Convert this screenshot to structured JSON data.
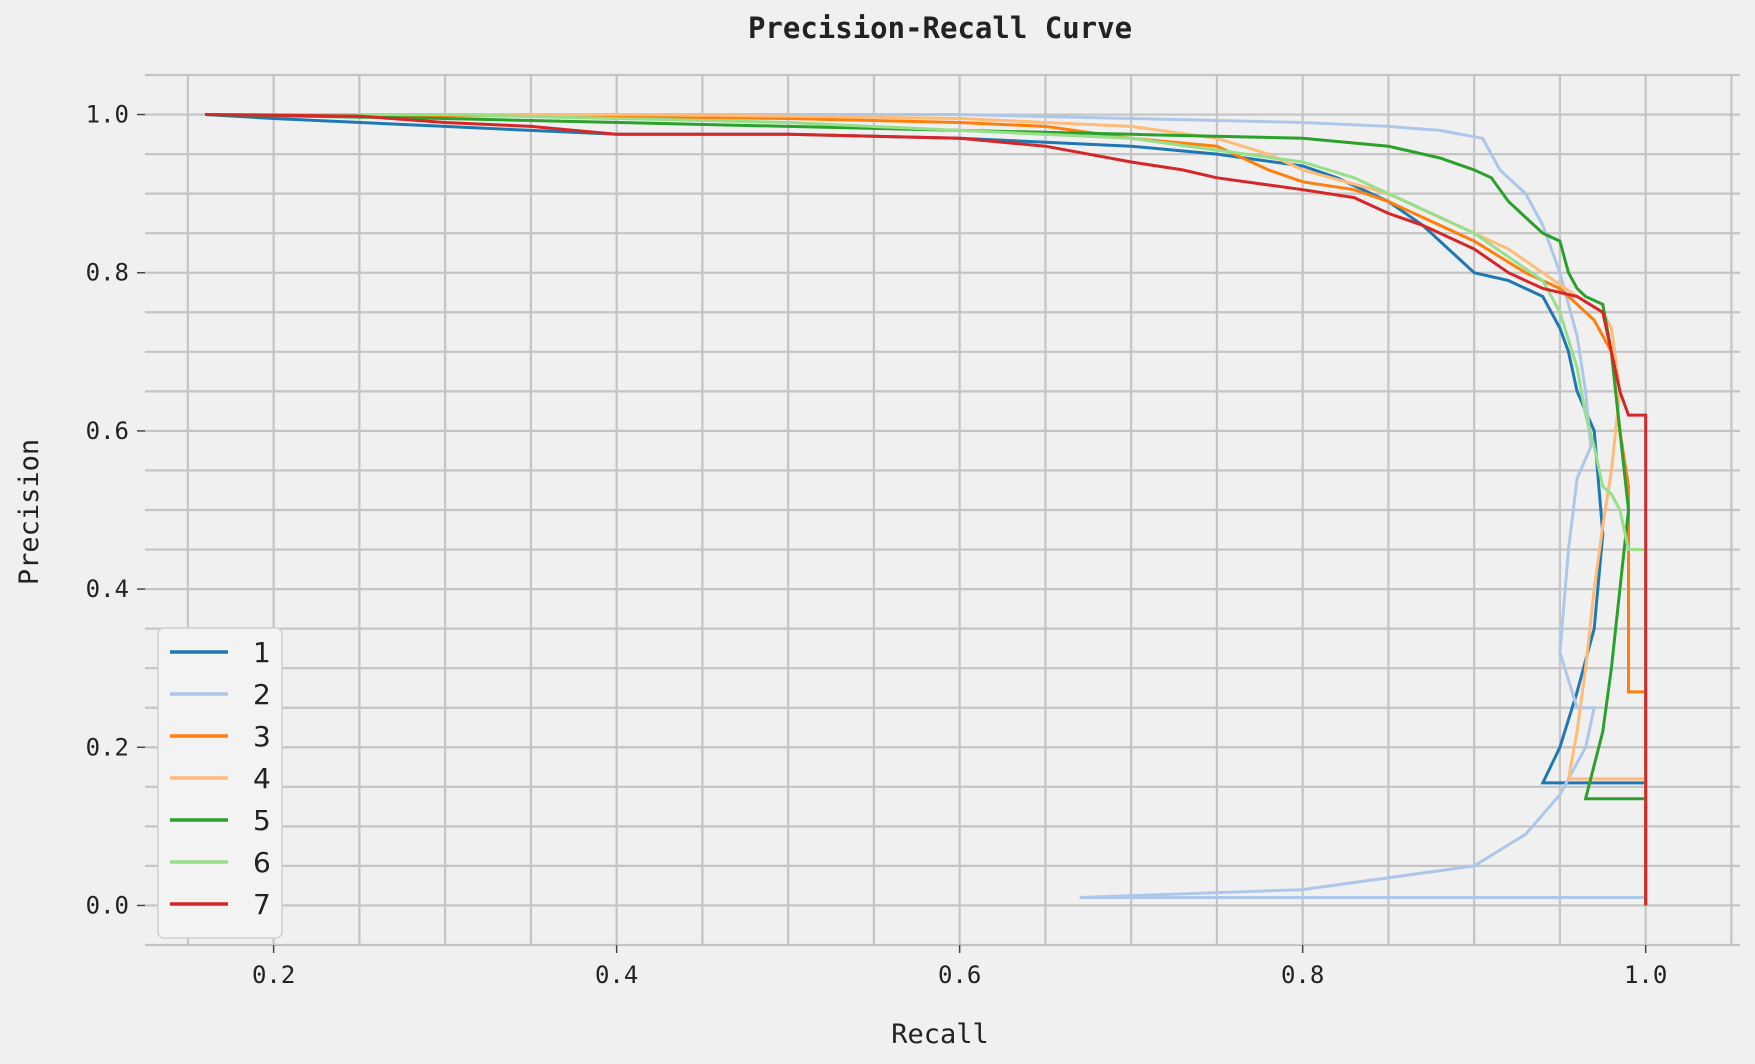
{
  "chart_data": {
    "type": "line",
    "title": "Precision-Recall Curve",
    "xlabel": "Recall",
    "ylabel": "Precision",
    "xlim": [
      0.125,
      1.055
    ],
    "ylim": [
      -0.05,
      1.05
    ],
    "xticks": [
      0.2,
      0.4,
      0.6,
      0.8,
      1.0
    ],
    "xtick_labels": [
      "0.2",
      "0.4",
      "0.6",
      "0.8",
      "1.0"
    ],
    "yticks": [
      0.0,
      0.2,
      0.4,
      0.6,
      0.8,
      1.0
    ],
    "ytick_labels": [
      "0.0",
      "0.2",
      "0.4",
      "0.6",
      "0.8",
      "1.0"
    ],
    "x_minor_grid_step": 0.05,
    "y_minor_grid_step": 0.05,
    "grid": true,
    "legend_position": "lower-left",
    "background": "#f0f0f0",
    "series": [
      {
        "name": "1",
        "color": "#1f77b4",
        "points": [
          [
            0.16,
            1.0
          ],
          [
            0.2,
            0.995
          ],
          [
            0.3,
            0.985
          ],
          [
            0.35,
            0.98
          ],
          [
            0.4,
            0.975
          ],
          [
            0.5,
            0.975
          ],
          [
            0.6,
            0.97
          ],
          [
            0.65,
            0.965
          ],
          [
            0.7,
            0.96
          ],
          [
            0.75,
            0.95
          ],
          [
            0.8,
            0.935
          ],
          [
            0.82,
            0.92
          ],
          [
            0.85,
            0.89
          ],
          [
            0.87,
            0.86
          ],
          [
            0.89,
            0.82
          ],
          [
            0.9,
            0.8
          ],
          [
            0.92,
            0.79
          ],
          [
            0.93,
            0.78
          ],
          [
            0.94,
            0.77
          ],
          [
            0.95,
            0.73
          ],
          [
            0.955,
            0.7
          ],
          [
            0.96,
            0.65
          ],
          [
            0.97,
            0.6
          ],
          [
            0.975,
            0.47
          ],
          [
            0.97,
            0.35
          ],
          [
            0.96,
            0.27
          ],
          [
            0.95,
            0.2
          ],
          [
            0.94,
            0.155
          ],
          [
            1.0,
            0.155
          ],
          [
            1.0,
            0.0
          ]
        ]
      },
      {
        "name": "2",
        "color": "#aec7e8",
        "points": [
          [
            0.16,
            1.0
          ],
          [
            0.3,
            1.0
          ],
          [
            0.4,
            1.0
          ],
          [
            0.5,
            1.0
          ],
          [
            0.6,
            1.0
          ],
          [
            0.7,
            0.995
          ],
          [
            0.8,
            0.99
          ],
          [
            0.85,
            0.985
          ],
          [
            0.88,
            0.98
          ],
          [
            0.905,
            0.97
          ],
          [
            0.91,
            0.95
          ],
          [
            0.915,
            0.93
          ],
          [
            0.93,
            0.9
          ],
          [
            0.94,
            0.86
          ],
          [
            0.95,
            0.8
          ],
          [
            0.96,
            0.72
          ],
          [
            0.965,
            0.65
          ],
          [
            0.968,
            0.58
          ],
          [
            0.96,
            0.54
          ],
          [
            0.955,
            0.45
          ],
          [
            0.95,
            0.32
          ],
          [
            0.96,
            0.25
          ],
          [
            0.97,
            0.25
          ],
          [
            0.965,
            0.2
          ],
          [
            0.95,
            0.14
          ],
          [
            0.93,
            0.09
          ],
          [
            0.9,
            0.05
          ],
          [
            0.8,
            0.02
          ],
          [
            0.67,
            0.01
          ],
          [
            1.0,
            0.01
          ]
        ]
      },
      {
        "name": "3",
        "color": "#ff7f0e",
        "points": [
          [
            0.16,
            1.0
          ],
          [
            0.37,
            0.998
          ],
          [
            0.5,
            0.995
          ],
          [
            0.6,
            0.99
          ],
          [
            0.65,
            0.985
          ],
          [
            0.7,
            0.97
          ],
          [
            0.75,
            0.96
          ],
          [
            0.78,
            0.93
          ],
          [
            0.8,
            0.915
          ],
          [
            0.83,
            0.905
          ],
          [
            0.85,
            0.89
          ],
          [
            0.87,
            0.87
          ],
          [
            0.9,
            0.84
          ],
          [
            0.93,
            0.8
          ],
          [
            0.95,
            0.78
          ],
          [
            0.96,
            0.76
          ],
          [
            0.97,
            0.74
          ],
          [
            0.98,
            0.7
          ],
          [
            0.985,
            0.6
          ],
          [
            0.99,
            0.53
          ],
          [
            0.99,
            0.27
          ],
          [
            1.0,
            0.27
          ],
          [
            1.0,
            0.0
          ]
        ]
      },
      {
        "name": "4",
        "color": "#ffbb78",
        "points": [
          [
            0.16,
            1.0
          ],
          [
            0.4,
            1.0
          ],
          [
            0.5,
            0.998
          ],
          [
            0.6,
            0.995
          ],
          [
            0.65,
            0.99
          ],
          [
            0.7,
            0.985
          ],
          [
            0.75,
            0.97
          ],
          [
            0.78,
            0.95
          ],
          [
            0.8,
            0.93
          ],
          [
            0.85,
            0.9
          ],
          [
            0.88,
            0.87
          ],
          [
            0.9,
            0.85
          ],
          [
            0.92,
            0.83
          ],
          [
            0.94,
            0.8
          ],
          [
            0.96,
            0.77
          ],
          [
            0.975,
            0.75
          ],
          [
            0.98,
            0.73
          ],
          [
            0.985,
            0.65
          ],
          [
            0.98,
            0.55
          ],
          [
            0.975,
            0.48
          ],
          [
            0.97,
            0.4
          ],
          [
            0.965,
            0.3
          ],
          [
            0.96,
            0.22
          ],
          [
            0.955,
            0.16
          ],
          [
            1.0,
            0.16
          ],
          [
            1.0,
            0.0
          ]
        ]
      },
      {
        "name": "5",
        "color": "#2ca02c",
        "points": [
          [
            0.16,
            1.0
          ],
          [
            0.3,
            0.995
          ],
          [
            0.5,
            0.985
          ],
          [
            0.6,
            0.98
          ],
          [
            0.7,
            0.975
          ],
          [
            0.8,
            0.97
          ],
          [
            0.85,
            0.96
          ],
          [
            0.88,
            0.945
          ],
          [
            0.9,
            0.93
          ],
          [
            0.91,
            0.92
          ],
          [
            0.92,
            0.89
          ],
          [
            0.93,
            0.87
          ],
          [
            0.94,
            0.85
          ],
          [
            0.95,
            0.84
          ],
          [
            0.955,
            0.8
          ],
          [
            0.96,
            0.78
          ],
          [
            0.965,
            0.77
          ],
          [
            0.975,
            0.76
          ],
          [
            0.98,
            0.7
          ],
          [
            0.985,
            0.6
          ],
          [
            0.99,
            0.5
          ],
          [
            0.985,
            0.4
          ],
          [
            0.98,
            0.3
          ],
          [
            0.975,
            0.22
          ],
          [
            0.965,
            0.135
          ],
          [
            1.0,
            0.135
          ],
          [
            1.0,
            0.0
          ]
        ]
      },
      {
        "name": "6",
        "color": "#98df8a",
        "points": [
          [
            0.16,
            1.0
          ],
          [
            0.3,
            1.0
          ],
          [
            0.5,
            0.99
          ],
          [
            0.6,
            0.98
          ],
          [
            0.7,
            0.97
          ],
          [
            0.75,
            0.955
          ],
          [
            0.8,
            0.94
          ],
          [
            0.83,
            0.92
          ],
          [
            0.85,
            0.9
          ],
          [
            0.88,
            0.87
          ],
          [
            0.9,
            0.85
          ],
          [
            0.92,
            0.82
          ],
          [
            0.94,
            0.79
          ],
          [
            0.95,
            0.75
          ],
          [
            0.96,
            0.68
          ],
          [
            0.965,
            0.62
          ],
          [
            0.97,
            0.58
          ],
          [
            0.975,
            0.53
          ],
          [
            0.98,
            0.52
          ],
          [
            0.985,
            0.5
          ],
          [
            0.99,
            0.45
          ],
          [
            1.0,
            0.45
          ],
          [
            1.0,
            0.0
          ]
        ]
      },
      {
        "name": "7",
        "color": "#d62728",
        "points": [
          [
            0.16,
            1.0
          ],
          [
            0.25,
            0.998
          ],
          [
            0.3,
            0.99
          ],
          [
            0.35,
            0.985
          ],
          [
            0.4,
            0.975
          ],
          [
            0.5,
            0.975
          ],
          [
            0.6,
            0.97
          ],
          [
            0.65,
            0.96
          ],
          [
            0.7,
            0.94
          ],
          [
            0.73,
            0.93
          ],
          [
            0.75,
            0.92
          ],
          [
            0.8,
            0.905
          ],
          [
            0.83,
            0.895
          ],
          [
            0.85,
            0.875
          ],
          [
            0.87,
            0.86
          ],
          [
            0.9,
            0.83
          ],
          [
            0.92,
            0.8
          ],
          [
            0.94,
            0.78
          ],
          [
            0.96,
            0.77
          ],
          [
            0.975,
            0.75
          ],
          [
            0.98,
            0.7
          ],
          [
            0.985,
            0.65
          ],
          [
            0.99,
            0.62
          ],
          [
            1.0,
            0.62
          ],
          [
            1.0,
            0.0
          ]
        ]
      }
    ]
  }
}
